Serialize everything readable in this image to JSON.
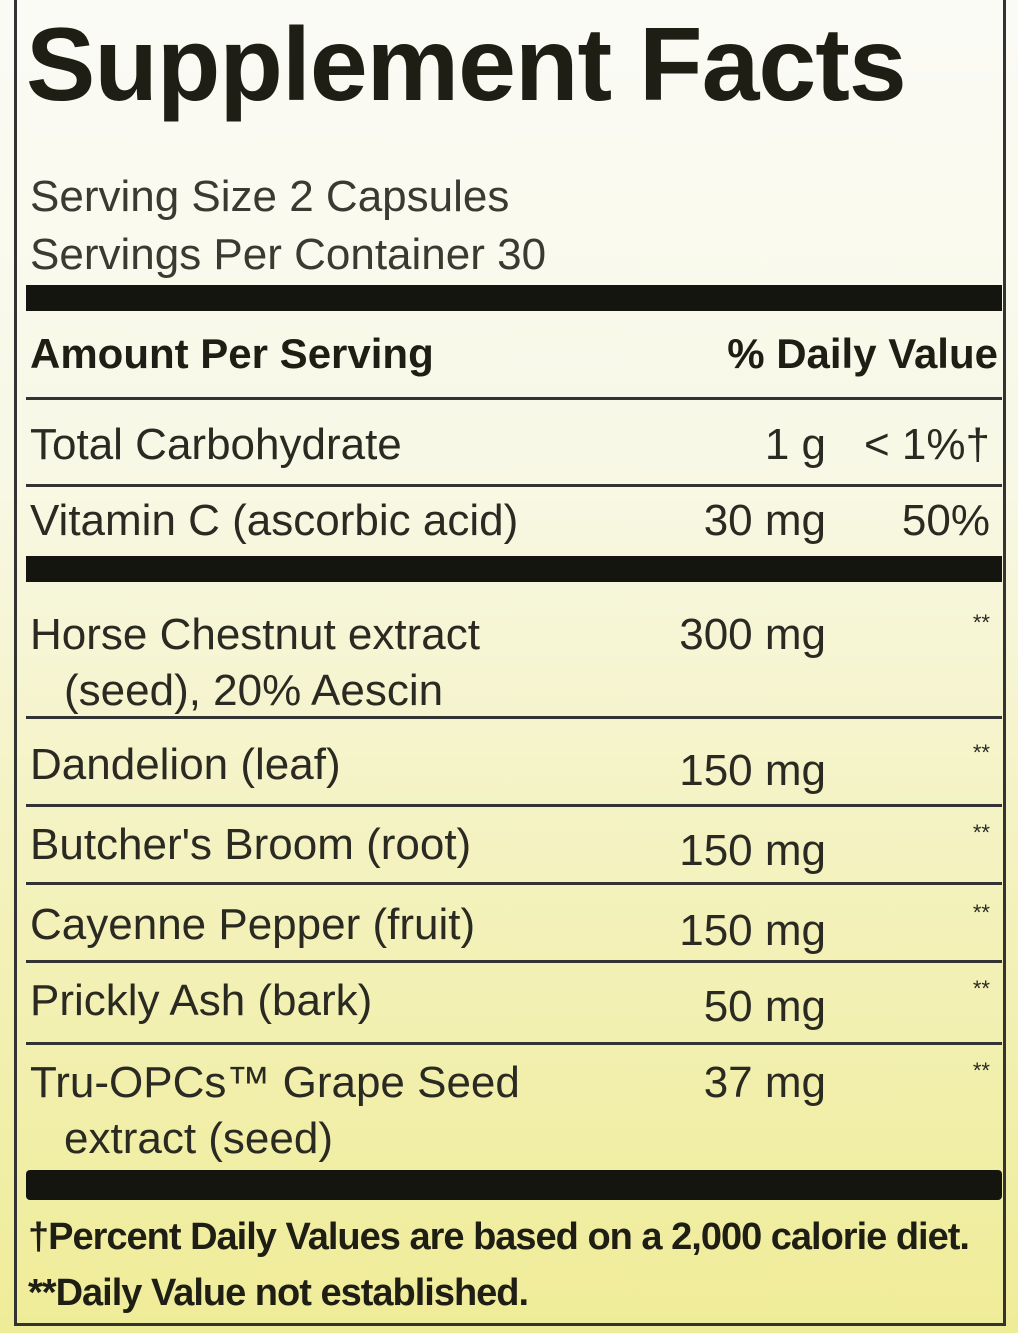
{
  "title": "Supplement Facts",
  "serving_size": "Serving Size 2 Capsules",
  "servings_per_container": "Servings Per Container 30",
  "header": {
    "amount": "Amount Per Serving",
    "daily_value": "% Daily Value"
  },
  "nutrients": [
    {
      "name": "Total Carbohydrate",
      "amount": "1 g",
      "dv": "< 1%†"
    },
    {
      "name": "Vitamin C (ascorbic acid)",
      "amount": "30 mg",
      "dv": "50%"
    }
  ],
  "ingredients": [
    {
      "name": "Horse Chestnut extract",
      "name2": "(seed), 20% Aescin",
      "amount": "300 mg",
      "dv": "**"
    },
    {
      "name": "Dandelion (leaf)",
      "amount": "150 mg",
      "dv": "**"
    },
    {
      "name": "Butcher's Broom (root)",
      "amount": "150 mg",
      "dv": "**"
    },
    {
      "name": "Cayenne Pepper (fruit)",
      "amount": "150 mg",
      "dv": "**"
    },
    {
      "name": "Prickly Ash (bark)",
      "amount": "50 mg",
      "dv": "**"
    },
    {
      "name": "Tru-OPCs™ Grape Seed",
      "name2": "extract (seed)",
      "amount": "37 mg",
      "dv": "**"
    }
  ],
  "footnotes": [
    "†Percent Daily Values are based on a 2,000 calorie diet.",
    "**Daily Value not established."
  ]
}
